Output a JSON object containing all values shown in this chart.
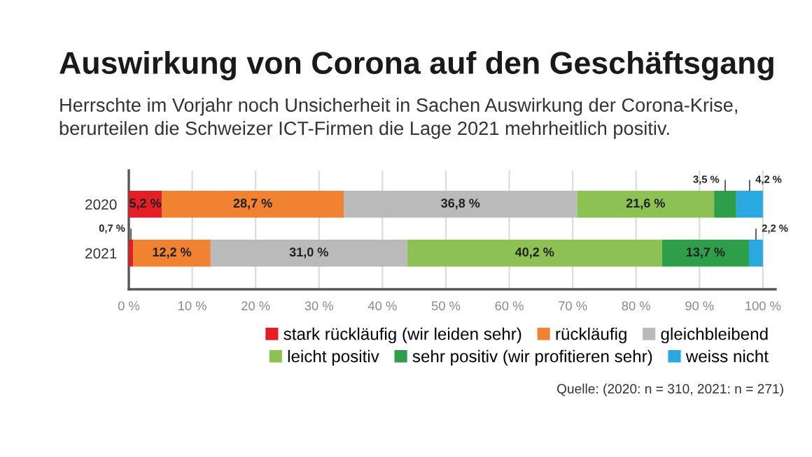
{
  "chart_data": {
    "type": "bar",
    "orientation": "horizontal",
    "stacked": true,
    "title": "Auswirkung von Corona auf den Geschäftsgang",
    "subtitle": "Herrschte im Vorjahr noch Unsicherheit in Sachen Auswirkung der Corona-Krise, berurteilen die Schweizer ICT-Firmen die Lage 2021 mehrheitlich positiv.",
    "categories": [
      "2020",
      "2021"
    ],
    "series": [
      {
        "name": "stark rückläufig (wir leiden sehr)",
        "color": "#e31e24",
        "values": [
          5.2,
          0.7
        ],
        "value_labels": [
          "5,2 %",
          "0,7 %"
        ]
      },
      {
        "name": "rückläufig",
        "color": "#f08232",
        "values": [
          28.7,
          12.2
        ],
        "value_labels": [
          "28,7 %",
          "12,2 %"
        ]
      },
      {
        "name": "gleichbleibend",
        "color": "#bababa",
        "values": [
          36.8,
          31.0
        ],
        "value_labels": [
          "36,8 %",
          "31,0 %"
        ]
      },
      {
        "name": "leicht positiv",
        "color": "#8dc153",
        "values": [
          21.6,
          40.2
        ],
        "value_labels": [
          "21,6 %",
          "40,2 %"
        ]
      },
      {
        "name": "sehr positiv (wir profitieren sehr)",
        "color": "#2e9e4b",
        "values": [
          3.5,
          13.7
        ],
        "value_labels": [
          "3,5 %",
          "13,7 %"
        ]
      },
      {
        "name": "weiss nicht",
        "color": "#29a9e0",
        "values": [
          4.2,
          2.2
        ],
        "value_labels": [
          "4,2 %",
          "2,2 %"
        ]
      }
    ],
    "xlim": [
      0,
      102
    ],
    "xticks": [
      {
        "value": 0,
        "label": "0 %"
      },
      {
        "value": 10,
        "label": "10 %"
      },
      {
        "value": 20,
        "label": "20 %"
      },
      {
        "value": 30,
        "label": "30 %"
      },
      {
        "value": 40,
        "label": "40 %"
      },
      {
        "value": 50,
        "label": "50 %"
      },
      {
        "value": 60,
        "label": "60 %"
      },
      {
        "value": 70,
        "label": "70 %"
      },
      {
        "value": 80,
        "label": "80 %"
      },
      {
        "value": 90,
        "label": "90 %"
      },
      {
        "value": 100,
        "label": "100 %"
      }
    ],
    "grid": "x",
    "legend": "bottom",
    "annotations": [
      "Quelle: (2020: n = 310, 2021: n = 271)"
    ]
  }
}
